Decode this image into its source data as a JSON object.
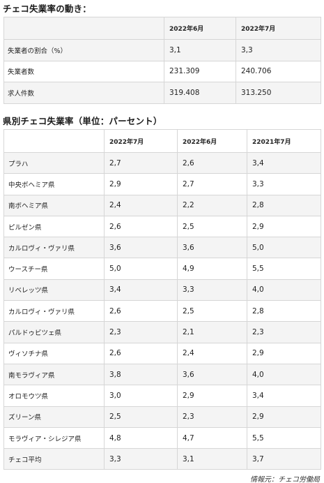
{
  "section1": {
    "title": "チェコ失業率の動き：",
    "headers": [
      "",
      "2022年6月",
      "2022年7月"
    ],
    "rows": [
      [
        "失業者の割合（%）",
        "3,1",
        "3,3"
      ],
      [
        "失業者数",
        "231.309",
        "240.706"
      ],
      [
        "求人件数",
        "319.408",
        "313.250"
      ]
    ]
  },
  "section2": {
    "title": "県別チェコ失業率（単位：パーセント）",
    "headers": [
      "",
      "2022年7月",
      "2022年6月",
      "22021年7月"
    ],
    "rows": [
      [
        "プラハ",
        "2,7",
        "2,6",
        "3,4"
      ],
      [
        "中央ボヘミア県",
        "2,9",
        "2,7",
        "3,3"
      ],
      [
        "南ボヘミア県",
        "2,4",
        "2,2",
        "2,8"
      ],
      [
        "ピルゼン県",
        "2,6",
        "2,5",
        "2,9"
      ],
      [
        "カルロヴィ・ヴァリ県",
        "3,6",
        "3,6",
        "5,0"
      ],
      [
        "ウースチー県",
        "5,0",
        "4,9",
        "5,5"
      ],
      [
        "リベレッツ県",
        "3,4",
        "3,3",
        "4,0"
      ],
      [
        "カルロヴィ・ヴァリ県",
        "2,6",
        "2,5",
        "2,8"
      ],
      [
        "パルドゥビツェ県",
        "2,3",
        "2,1",
        "2,3"
      ],
      [
        "ヴィソチナ県",
        "2,6",
        "2,4",
        "2,9"
      ],
      [
        "南モラヴィア県",
        "3,8",
        "3,6",
        "4,0"
      ],
      [
        "オロモウツ県",
        "3,0",
        "2,9",
        "3,4"
      ],
      [
        "ズリーン県",
        "2,5",
        "2,3",
        "2,9"
      ],
      [
        "モラヴィア・シレジア県",
        "4,8",
        "4,7",
        "5,5"
      ],
      [
        "チェコ平均",
        "3,3",
        "3,1",
        "3,7"
      ]
    ]
  },
  "source": "情報元：チェコ労働局"
}
